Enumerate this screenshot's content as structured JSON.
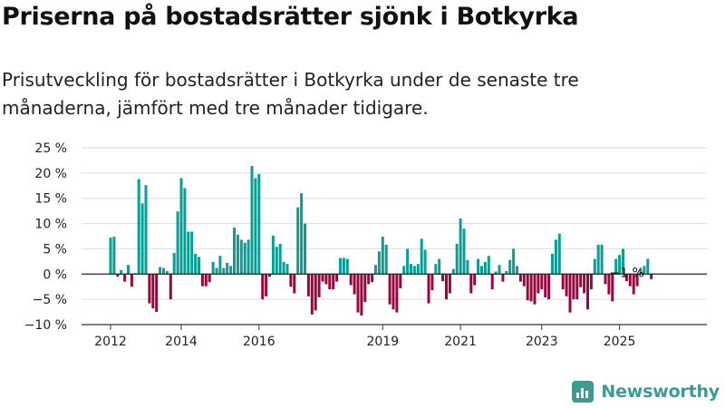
{
  "header": {
    "title": "Priserna på bostadsrätter sjönk i Botkyrka",
    "subtitle": "Prisutveckling för bostadsrätter i Botkyrka under de senaste tre månaderna, jämfört med tre månader tidigare."
  },
  "brand": {
    "name": "Newsworthy"
  },
  "colors": {
    "positive": "#0a9d94",
    "negative": "#97073f",
    "grid": "#dddddd"
  },
  "chart_data": {
    "type": "bar",
    "xlabel": "",
    "ylabel": "",
    "ylim": [
      -10,
      25
    ],
    "yticks": [
      25,
      20,
      15,
      10,
      5,
      0,
      -5,
      -10
    ],
    "ytick_labels": [
      "25 %",
      "20 %",
      "15 %",
      "10 %",
      "5 %",
      "0 %",
      "−5 %",
      "−10 %"
    ],
    "xticks": [
      {
        "label": "2012",
        "index": 0
      },
      {
        "label": "2014",
        "index": 20
      },
      {
        "label": "2016",
        "index": 42
      },
      {
        "label": "2019",
        "index": 77
      },
      {
        "label": "2021",
        "index": 99
      },
      {
        "label": "2023",
        "index": 122
      },
      {
        "label": "2025",
        "index": 144
      }
    ],
    "annotation": {
      "label": "−1 %",
      "index": 152
    },
    "values": [
      7.2,
      7.4,
      -0.5,
      0.8,
      -1.5,
      1.8,
      -2.5,
      0.2,
      18.8,
      14,
      17.6,
      -5.8,
      -6.8,
      -7.5,
      1.4,
      1.2,
      0.6,
      -5,
      4.2,
      12.4,
      19,
      17,
      8.4,
      8.4,
      4,
      3.4,
      -2.4,
      -2.4,
      -1.6,
      2.4,
      1.2,
      3.6,
      1.2,
      2.2,
      1.6,
      9.2,
      7.8,
      6.8,
      6.2,
      6.8,
      21.4,
      19,
      19.8,
      -5,
      -4.4,
      -0.5,
      7.6,
      5.4,
      6,
      2.4,
      2,
      -2.5,
      -3.8,
      13.2,
      16,
      10,
      -4.4,
      -8,
      -7.2,
      -4.6,
      -1.5,
      -2,
      -3,
      -3,
      -1.5,
      3.2,
      3.2,
      3,
      -2.2,
      -4,
      -7.6,
      -8.2,
      -5.5,
      -2,
      -1.6,
      1.8,
      4.5,
      7.4,
      5.8,
      -6,
      -7,
      -7.6,
      -2.8,
      1.6,
      5,
      2,
      1.6,
      2,
      7,
      4.8,
      -5.8,
      -3.2,
      2,
      3,
      -1.4,
      -5,
      -3.8,
      1,
      6,
      11,
      9,
      2.8,
      -3.8,
      -2.2,
      3,
      1.6,
      2.4,
      3.6,
      -3,
      0.5,
      1.8,
      -1.5,
      0.6,
      2.8,
      5,
      1.6,
      -1.5,
      -2.4,
      -5.2,
      -5.4,
      -6,
      -3.8,
      -3,
      -4.6,
      -5,
      4,
      6.8,
      8,
      -3,
      -4.4,
      -7.6,
      -5,
      -5,
      -2.6,
      -3.8,
      -7,
      -3,
      3,
      5.8,
      5.8,
      -2,
      -4,
      -5.4,
      3,
      3.8,
      5,
      -1.4,
      -2.4,
      -4,
      -2.4,
      1,
      1.6,
      3,
      -1
    ]
  }
}
